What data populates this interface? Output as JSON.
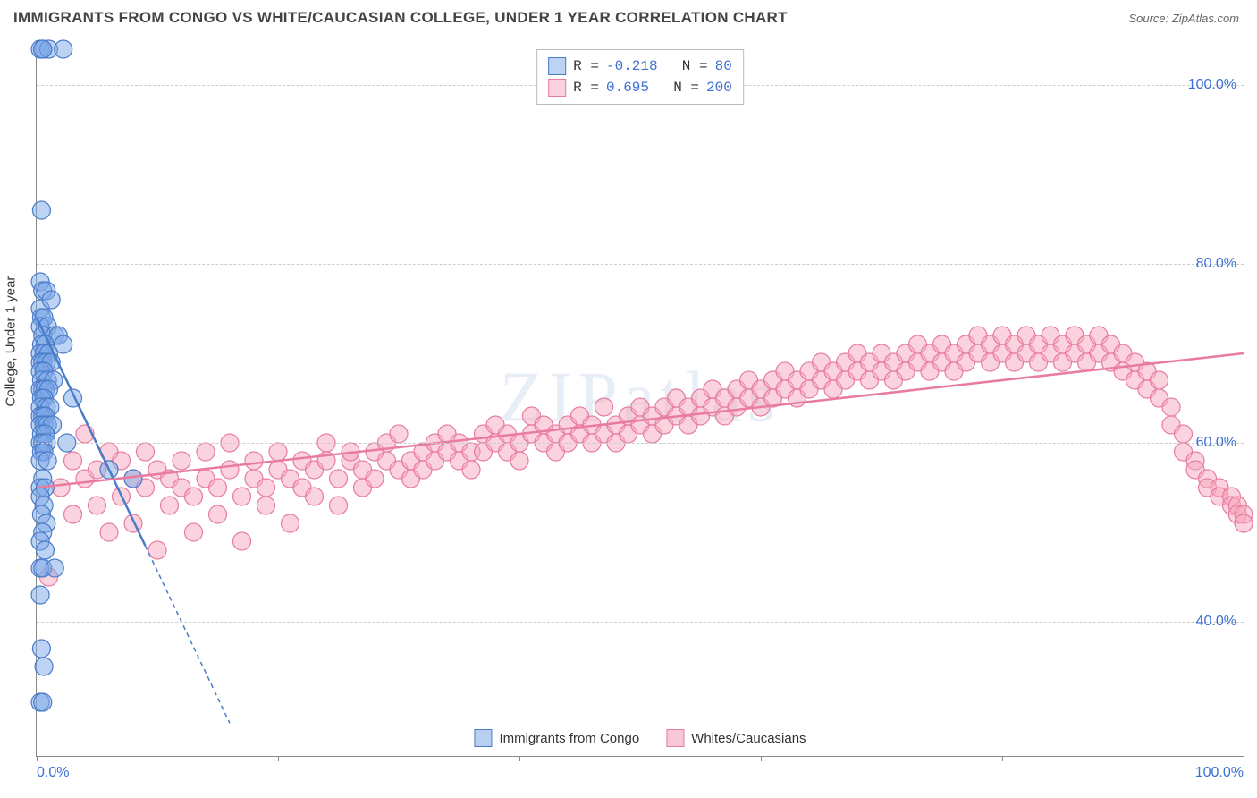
{
  "title": "IMMIGRANTS FROM CONGO VS WHITE/CAUCASIAN COLLEGE, UNDER 1 YEAR CORRELATION CHART",
  "source": "Source: ZipAtlas.com",
  "watermark": "ZIPatlas",
  "ylabel": "College, Under 1 year",
  "chart": {
    "type": "scatter",
    "xlim": [
      0,
      100
    ],
    "ylim": [
      25,
      105
    ],
    "ytick_values": [
      40,
      60,
      80,
      100
    ],
    "ytick_labels": [
      "40.0%",
      "60.0%",
      "80.0%",
      "100.0%"
    ],
    "xtick_values": [
      0,
      20,
      40,
      60,
      80,
      100
    ],
    "xtick_labels_shown": {
      "0": "0.0%",
      "100": "100.0%"
    },
    "grid_color": "#cccccc",
    "axis_color": "#888888",
    "background": "#ffffff",
    "marker_radius": 10,
    "marker_opacity": 0.5,
    "series": [
      {
        "name": "Immigrants from Congo",
        "color_fill": "#7ba7e8",
        "color_stroke": "#4a7bc8",
        "R": -0.218,
        "N": 80,
        "trend": {
          "x1": 0,
          "y1": 74,
          "x2": 12,
          "y2": 40,
          "solid_until_x": 9,
          "extend_to_x": 16
        },
        "points": [
          [
            0.3,
            104
          ],
          [
            0.5,
            104
          ],
          [
            1.0,
            104
          ],
          [
            2.2,
            104
          ],
          [
            0.5,
            104
          ],
          [
            0.4,
            86
          ],
          [
            0.3,
            78
          ],
          [
            0.5,
            77
          ],
          [
            0.8,
            77
          ],
          [
            0.3,
            75
          ],
          [
            1.2,
            76
          ],
          [
            0.4,
            74
          ],
          [
            0.6,
            74
          ],
          [
            0.3,
            73
          ],
          [
            0.9,
            73
          ],
          [
            0.5,
            72
          ],
          [
            1.5,
            72
          ],
          [
            1.8,
            72
          ],
          [
            0.4,
            71
          ],
          [
            0.7,
            71
          ],
          [
            2.2,
            71
          ],
          [
            0.3,
            70
          ],
          [
            0.6,
            70
          ],
          [
            1.0,
            70
          ],
          [
            0.3,
            69
          ],
          [
            0.5,
            69
          ],
          [
            0.8,
            69
          ],
          [
            1.2,
            69
          ],
          [
            0.3,
            68
          ],
          [
            0.6,
            68
          ],
          [
            0.4,
            67
          ],
          [
            0.9,
            67
          ],
          [
            1.4,
            67
          ],
          [
            0.3,
            66
          ],
          [
            0.5,
            66
          ],
          [
            0.7,
            66
          ],
          [
            1.0,
            66
          ],
          [
            0.4,
            65
          ],
          [
            0.6,
            65
          ],
          [
            3.0,
            65
          ],
          [
            0.3,
            64
          ],
          [
            0.8,
            64
          ],
          [
            1.1,
            64
          ],
          [
            0.3,
            63
          ],
          [
            0.5,
            63
          ],
          [
            0.7,
            63
          ],
          [
            0.3,
            62
          ],
          [
            0.6,
            62
          ],
          [
            0.9,
            62
          ],
          [
            1.3,
            62
          ],
          [
            0.4,
            61
          ],
          [
            0.7,
            61
          ],
          [
            0.3,
            60
          ],
          [
            0.5,
            60
          ],
          [
            0.8,
            60
          ],
          [
            2.5,
            60
          ],
          [
            0.4,
            59
          ],
          [
            0.6,
            59
          ],
          [
            0.3,
            58
          ],
          [
            0.9,
            58
          ],
          [
            6.0,
            57
          ],
          [
            0.5,
            56
          ],
          [
            8.0,
            56
          ],
          [
            0.3,
            55
          ],
          [
            0.7,
            55
          ],
          [
            0.3,
            54
          ],
          [
            0.6,
            53
          ],
          [
            0.4,
            52
          ],
          [
            0.8,
            51
          ],
          [
            0.5,
            50
          ],
          [
            0.3,
            49
          ],
          [
            0.7,
            48
          ],
          [
            0.3,
            46
          ],
          [
            0.5,
            46
          ],
          [
            1.5,
            46
          ],
          [
            0.3,
            43
          ],
          [
            0.4,
            37
          ],
          [
            0.6,
            35
          ],
          [
            0.3,
            31
          ],
          [
            0.5,
            31
          ]
        ]
      },
      {
        "name": "Whites/Caucasians",
        "color_fill": "#f5a8bd",
        "color_stroke": "#e87ca0",
        "R": 0.695,
        "N": 200,
        "trend": {
          "x1": 0,
          "y1": 55,
          "x2": 100,
          "y2": 70,
          "solid_until_x": 100
        },
        "points": [
          [
            1,
            45
          ],
          [
            2,
            55
          ],
          [
            3,
            58
          ],
          [
            3,
            52
          ],
          [
            4,
            56
          ],
          [
            4,
            61
          ],
          [
            5,
            53
          ],
          [
            5,
            57
          ],
          [
            6,
            59
          ],
          [
            6,
            50
          ],
          [
            7,
            54
          ],
          [
            7,
            58
          ],
          [
            8,
            56
          ],
          [
            8,
            51
          ],
          [
            9,
            55
          ],
          [
            9,
            59
          ],
          [
            10,
            57
          ],
          [
            10,
            48
          ],
          [
            11,
            53
          ],
          [
            11,
            56
          ],
          [
            12,
            55
          ],
          [
            12,
            58
          ],
          [
            13,
            54
          ],
          [
            13,
            50
          ],
          [
            14,
            56
          ],
          [
            14,
            59
          ],
          [
            15,
            55
          ],
          [
            15,
            52
          ],
          [
            16,
            57
          ],
          [
            16,
            60
          ],
          [
            17,
            54
          ],
          [
            17,
            49
          ],
          [
            18,
            56
          ],
          [
            18,
            58
          ],
          [
            19,
            55
          ],
          [
            19,
            53
          ],
          [
            20,
            57
          ],
          [
            20,
            59
          ],
          [
            21,
            56
          ],
          [
            21,
            51
          ],
          [
            22,
            58
          ],
          [
            22,
            55
          ],
          [
            23,
            57
          ],
          [
            23,
            54
          ],
          [
            24,
            58
          ],
          [
            24,
            60
          ],
          [
            25,
            56
          ],
          [
            25,
            53
          ],
          [
            26,
            58
          ],
          [
            26,
            59
          ],
          [
            27,
            57
          ],
          [
            27,
            55
          ],
          [
            28,
            59
          ],
          [
            28,
            56
          ],
          [
            29,
            58
          ],
          [
            29,
            60
          ],
          [
            30,
            57
          ],
          [
            30,
            61
          ],
          [
            31,
            56
          ],
          [
            31,
            58
          ],
          [
            32,
            59
          ],
          [
            32,
            57
          ],
          [
            33,
            60
          ],
          [
            33,
            58
          ],
          [
            34,
            59
          ],
          [
            34,
            61
          ],
          [
            35,
            58
          ],
          [
            35,
            60
          ],
          [
            36,
            59
          ],
          [
            36,
            57
          ],
          [
            37,
            61
          ],
          [
            37,
            59
          ],
          [
            38,
            60
          ],
          [
            38,
            62
          ],
          [
            39,
            59
          ],
          [
            39,
            61
          ],
          [
            40,
            60
          ],
          [
            40,
            58
          ],
          [
            41,
            61
          ],
          [
            41,
            63
          ],
          [
            42,
            60
          ],
          [
            42,
            62
          ],
          [
            43,
            61
          ],
          [
            43,
            59
          ],
          [
            44,
            62
          ],
          [
            44,
            60
          ],
          [
            45,
            61
          ],
          [
            45,
            63
          ],
          [
            46,
            62
          ],
          [
            46,
            60
          ],
          [
            47,
            61
          ],
          [
            47,
            64
          ],
          [
            48,
            62
          ],
          [
            48,
            60
          ],
          [
            49,
            63
          ],
          [
            49,
            61
          ],
          [
            50,
            62
          ],
          [
            50,
            64
          ],
          [
            51,
            63
          ],
          [
            51,
            61
          ],
          [
            52,
            64
          ],
          [
            52,
            62
          ],
          [
            53,
            63
          ],
          [
            53,
            65
          ],
          [
            54,
            62
          ],
          [
            54,
            64
          ],
          [
            55,
            65
          ],
          [
            55,
            63
          ],
          [
            56,
            64
          ],
          [
            56,
            66
          ],
          [
            57,
            63
          ],
          [
            57,
            65
          ],
          [
            58,
            66
          ],
          [
            58,
            64
          ],
          [
            59,
            65
          ],
          [
            59,
            67
          ],
          [
            60,
            64
          ],
          [
            60,
            66
          ],
          [
            61,
            67
          ],
          [
            61,
            65
          ],
          [
            62,
            66
          ],
          [
            62,
            68
          ],
          [
            63,
            65
          ],
          [
            63,
            67
          ],
          [
            64,
            68
          ],
          [
            64,
            66
          ],
          [
            65,
            67
          ],
          [
            65,
            69
          ],
          [
            66,
            66
          ],
          [
            66,
            68
          ],
          [
            67,
            69
          ],
          [
            67,
            67
          ],
          [
            68,
            68
          ],
          [
            68,
            70
          ],
          [
            69,
            67
          ],
          [
            69,
            69
          ],
          [
            70,
            70
          ],
          [
            70,
            68
          ],
          [
            71,
            69
          ],
          [
            71,
            67
          ],
          [
            72,
            70
          ],
          [
            72,
            68
          ],
          [
            73,
            69
          ],
          [
            73,
            71
          ],
          [
            74,
            68
          ],
          [
            74,
            70
          ],
          [
            75,
            71
          ],
          [
            75,
            69
          ],
          [
            76,
            70
          ],
          [
            76,
            68
          ],
          [
            77,
            71
          ],
          [
            77,
            69
          ],
          [
            78,
            70
          ],
          [
            78,
            72
          ],
          [
            79,
            69
          ],
          [
            79,
            71
          ],
          [
            80,
            72
          ],
          [
            80,
            70
          ],
          [
            81,
            71
          ],
          [
            81,
            69
          ],
          [
            82,
            72
          ],
          [
            82,
            70
          ],
          [
            83,
            71
          ],
          [
            83,
            69
          ],
          [
            84,
            72
          ],
          [
            84,
            70
          ],
          [
            85,
            71
          ],
          [
            85,
            69
          ],
          [
            86,
            72
          ],
          [
            86,
            70
          ],
          [
            87,
            71
          ],
          [
            87,
            69
          ],
          [
            88,
            72
          ],
          [
            88,
            70
          ],
          [
            89,
            71
          ],
          [
            89,
            69
          ],
          [
            90,
            70
          ],
          [
            90,
            68
          ],
          [
            91,
            69
          ],
          [
            91,
            67
          ],
          [
            92,
            68
          ],
          [
            92,
            66
          ],
          [
            93,
            67
          ],
          [
            93,
            65
          ],
          [
            94,
            64
          ],
          [
            94,
            62
          ],
          [
            95,
            61
          ],
          [
            95,
            59
          ],
          [
            96,
            58
          ],
          [
            96,
            57
          ],
          [
            97,
            56
          ],
          [
            97,
            55
          ],
          [
            98,
            55
          ],
          [
            98,
            54
          ],
          [
            99,
            54
          ],
          [
            99,
            53
          ],
          [
            99.5,
            53
          ],
          [
            99.5,
            52
          ],
          [
            100,
            52
          ],
          [
            100,
            51
          ]
        ]
      }
    ]
  },
  "legend_bottom": [
    {
      "label": "Immigrants from Congo",
      "fill": "#b8d0f0",
      "stroke": "#4a7bc8"
    },
    {
      "label": "Whites/Caucasians",
      "fill": "#f8c8d6",
      "stroke": "#e87ca0"
    }
  ]
}
